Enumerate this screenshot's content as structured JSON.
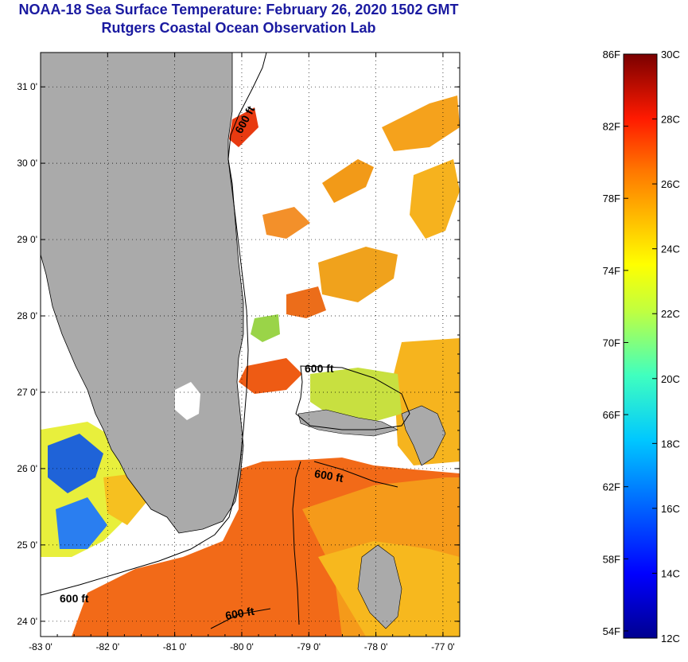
{
  "title": {
    "line1": "NOAA-18 Sea Surface Temperature:  February 26, 2020 1502 GMT",
    "line2": "Rutgers Coastal Ocean Observation Lab"
  },
  "map": {
    "lon_ticks": [
      "-83 0'",
      "-82 0'",
      "-81 0'",
      "-80 0'",
      "-79 0'",
      "-78 0'",
      "-77 0'"
    ],
    "lat_ticks": [
      "31 0'",
      "30 0'",
      "29 0'",
      "28 0'",
      "27 0'",
      "26 0'",
      "25 0'",
      "24 0'"
    ],
    "lon_range": [
      -83,
      -76.75
    ],
    "lat_range": [
      23.8,
      31.45
    ],
    "contour_label": "600 ft",
    "colors": {
      "land": "#aaaaaa",
      "cloud": "#ffffff",
      "contour": "#000000"
    }
  },
  "colorbar": {
    "f_labels": [
      "86F",
      "82F",
      "78F",
      "74F",
      "70F",
      "66F",
      "62F",
      "58F",
      "54F"
    ],
    "c_labels": [
      "30C",
      "28C",
      "26C",
      "24C",
      "22C",
      "20C",
      "18C",
      "16C",
      "14C",
      "12C"
    ],
    "f_values": [
      86,
      82,
      78,
      74,
      70,
      66,
      62,
      58,
      54
    ],
    "c_values": [
      30,
      28,
      26,
      24,
      22,
      20,
      18,
      16,
      14,
      12
    ],
    "c_range": [
      12,
      30
    ]
  }
}
